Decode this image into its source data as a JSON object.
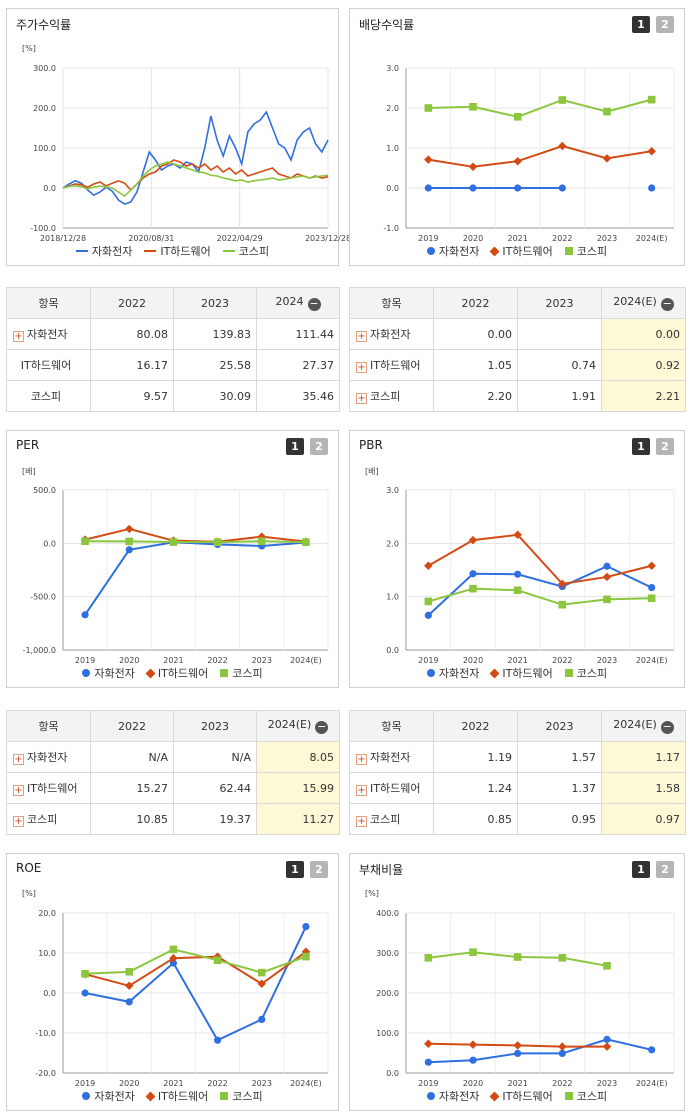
{
  "legend": {
    "samsung": "자화전자",
    "it": "IT하드웨어",
    "kospi": "코스피"
  },
  "colors": {
    "samsung": "#2f6fe0",
    "it": "#d44a14",
    "kospi": "#8cc63f"
  },
  "panels": {
    "stock_return": {
      "title": "주가수익률",
      "unit": "[%]"
    },
    "dividend": {
      "title": "배당수익률"
    },
    "per": {
      "title": "PER",
      "unit": "[배]"
    },
    "pbr": {
      "title": "PBR",
      "unit": "[배]"
    },
    "roe": {
      "title": "ROE",
      "unit": "[%]"
    },
    "debt": {
      "title": "부채비율",
      "unit": "[%]"
    }
  },
  "pager": {
    "one": "1",
    "two": "2"
  },
  "tables": {
    "stock_return": {
      "header": [
        "항목",
        "2022",
        "2023",
        "2024"
      ],
      "rows": [
        {
          "name": "자화전자",
          "plus": true,
          "values": [
            "80.08",
            "139.83",
            "111.44"
          ]
        },
        {
          "name": "IT하드웨어",
          "plus": false,
          "values": [
            "16.17",
            "25.58",
            "27.37"
          ]
        },
        {
          "name": "코스피",
          "plus": false,
          "values": [
            "9.57",
            "30.09",
            "35.46"
          ]
        }
      ]
    },
    "dividend": {
      "header": [
        "항목",
        "2022",
        "2023",
        "2024(E)"
      ],
      "rows": [
        {
          "name": "자화전자",
          "plus": true,
          "values": [
            "0.00",
            "",
            "0.00"
          ]
        },
        {
          "name": "IT하드웨어",
          "plus": true,
          "values": [
            "1.05",
            "0.74",
            "0.92"
          ]
        },
        {
          "name": "코스피",
          "plus": true,
          "values": [
            "2.20",
            "1.91",
            "2.21"
          ]
        }
      ]
    },
    "per": {
      "header": [
        "항목",
        "2022",
        "2023",
        "2024(E)"
      ],
      "rows": [
        {
          "name": "자화전자",
          "plus": true,
          "values": [
            "N/A",
            "N/A",
            "8.05"
          ]
        },
        {
          "name": "IT하드웨어",
          "plus": true,
          "values": [
            "15.27",
            "62.44",
            "15.99"
          ]
        },
        {
          "name": "코스피",
          "plus": true,
          "values": [
            "10.85",
            "19.37",
            "11.27"
          ]
        }
      ]
    },
    "pbr": {
      "header": [
        "항목",
        "2022",
        "2023",
        "2024(E)"
      ],
      "rows": [
        {
          "name": "자화전자",
          "plus": true,
          "values": [
            "1.19",
            "1.57",
            "1.17"
          ]
        },
        {
          "name": "IT하드웨어",
          "plus": true,
          "values": [
            "1.24",
            "1.37",
            "1.58"
          ]
        },
        {
          "name": "코스피",
          "plus": true,
          "values": [
            "0.85",
            "0.95",
            "0.97"
          ]
        }
      ]
    }
  },
  "chart_data": [
    {
      "id": "stock_return",
      "type": "line",
      "ylabel": "[%]",
      "ylim": [
        -100,
        300
      ],
      "yticks": [
        "300.0",
        "200.0",
        "100.0",
        "0.0",
        "-100.0"
      ],
      "xticks": [
        "2018/12/28",
        "2020/08/31",
        "2022/04/29",
        "2023/12/28"
      ],
      "series": [
        {
          "name": "자화전자",
          "values": [
            0,
            10,
            18,
            12,
            -5,
            -18,
            -10,
            2,
            -8,
            -30,
            -40,
            -35,
            -10,
            40,
            90,
            70,
            45,
            55,
            60,
            50,
            65,
            60,
            40,
            100,
            180,
            120,
            80,
            130,
            100,
            60,
            140,
            160,
            170,
            190,
            150,
            110,
            100,
            70,
            120,
            140,
            150,
            110,
            90,
            120
          ]
        },
        {
          "name": "IT하드웨어",
          "values": [
            0,
            5,
            10,
            8,
            2,
            10,
            15,
            5,
            12,
            18,
            12,
            -5,
            10,
            25,
            35,
            40,
            55,
            60,
            70,
            65,
            55,
            60,
            50,
            60,
            45,
            55,
            40,
            50,
            35,
            45,
            30,
            35,
            40,
            45,
            50,
            35,
            30,
            25,
            35,
            30,
            25,
            30,
            25,
            28
          ]
        },
        {
          "name": "코스피",
          "values": [
            0,
            4,
            6,
            3,
            -2,
            2,
            5,
            3,
            0,
            -10,
            -20,
            -5,
            10,
            30,
            45,
            55,
            60,
            65,
            60,
            55,
            50,
            45,
            40,
            38,
            32,
            30,
            25,
            22,
            18,
            20,
            15,
            18,
            20,
            22,
            25,
            20,
            22,
            25,
            28,
            30,
            25,
            28,
            30,
            32
          ]
        }
      ]
    },
    {
      "id": "dividend",
      "type": "line",
      "ylim": [
        -1.0,
        3.0
      ],
      "yticks": [
        "3.0",
        "2.0",
        "1.0",
        "0.0",
        "-1.0"
      ],
      "categories": [
        "2019",
        "2020",
        "2021",
        "2022",
        "2023",
        "2024(E)"
      ],
      "series": [
        {
          "name": "자화전자",
          "values": [
            0.0,
            0.0,
            0.0,
            0.0,
            null,
            0.0
          ]
        },
        {
          "name": "IT하드웨어",
          "values": [
            0.71,
            0.53,
            0.67,
            1.05,
            0.74,
            0.92
          ]
        },
        {
          "name": "코스피",
          "values": [
            2.0,
            2.03,
            1.78,
            2.2,
            1.91,
            2.21
          ]
        }
      ]
    },
    {
      "id": "per",
      "type": "line",
      "ylabel": "[배]",
      "ylim": [
        -1000,
        500
      ],
      "yticks": [
        "500.0",
        "0.0",
        "-500.0",
        "-1,000.0"
      ],
      "categories": [
        "2019",
        "2020",
        "2021",
        "2022",
        "2023",
        "2024(E)"
      ],
      "series": [
        {
          "name": "자화전자",
          "values": [
            -670,
            -60,
            10,
            -10,
            -25,
            8.05
          ]
        },
        {
          "name": "IT하드웨어",
          "values": [
            35,
            135,
            25,
            15.27,
            62.44,
            15.99
          ]
        },
        {
          "name": "코스피",
          "values": [
            20,
            18,
            12,
            10.85,
            19.37,
            11.27
          ]
        }
      ]
    },
    {
      "id": "pbr",
      "type": "line",
      "ylabel": "[배]",
      "ylim": [
        0,
        3.0
      ],
      "yticks": [
        "3.0",
        "2.0",
        "1.0",
        "0.0"
      ],
      "categories": [
        "2019",
        "2020",
        "2021",
        "2022",
        "2023",
        "2024(E)"
      ],
      "series": [
        {
          "name": "자화전자",
          "values": [
            0.65,
            1.43,
            1.42,
            1.19,
            1.57,
            1.17
          ]
        },
        {
          "name": "IT하드웨어",
          "values": [
            1.58,
            2.06,
            2.16,
            1.24,
            1.37,
            1.58
          ]
        },
        {
          "name": "코스피",
          "values": [
            0.91,
            1.15,
            1.12,
            0.85,
            0.95,
            0.97
          ]
        }
      ]
    },
    {
      "id": "roe",
      "type": "line",
      "ylabel": "[%]",
      "ylim": [
        -20,
        20
      ],
      "yticks": [
        "20.0",
        "10.0",
        "0.0",
        "-10.0",
        "-20.0"
      ],
      "categories": [
        "2019",
        "2020",
        "2021",
        "2022",
        "2023",
        "2024(E)"
      ],
      "series": [
        {
          "name": "자화전자",
          "values": [
            0.0,
            -2.2,
            7.5,
            -11.8,
            -6.6,
            16.6
          ]
        },
        {
          "name": "IT하드웨어",
          "values": [
            4.7,
            1.8,
            8.7,
            9.1,
            2.3,
            10.3
          ]
        },
        {
          "name": "코스피",
          "values": [
            4.8,
            5.3,
            10.9,
            8.2,
            5.1,
            9.1
          ]
        }
      ]
    },
    {
      "id": "debt",
      "type": "line",
      "ylabel": "[%]",
      "ylim": [
        0,
        400
      ],
      "yticks": [
        "400.0",
        "300.0",
        "200.0",
        "100.0",
        "0.0"
      ],
      "categories": [
        "2019",
        "2020",
        "2021",
        "2022",
        "2023",
        "2024(E)"
      ],
      "series": [
        {
          "name": "자화전자",
          "values": [
            27,
            32,
            49,
            49,
            84,
            58
          ]
        },
        {
          "name": "IT하드웨어",
          "values": [
            73,
            71,
            69,
            66,
            66,
            null
          ]
        },
        {
          "name": "코스피",
          "values": [
            288,
            302,
            290,
            288,
            268,
            null
          ]
        }
      ]
    }
  ]
}
